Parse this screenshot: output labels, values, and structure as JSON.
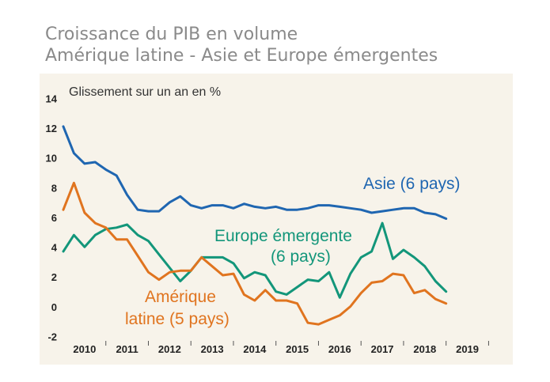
{
  "header": {
    "title_line1": "Croissance du PIB en volume",
    "title_line2": "Amérique latine - Asie et Europe émergentes"
  },
  "chart_data": {
    "type": "line",
    "ylabel": "Glissement sur un an en %",
    "ylim": [
      -2,
      14
    ],
    "yticks": [
      -2,
      0,
      2,
      4,
      6,
      8,
      10,
      12,
      14
    ],
    "xlim": [
      2009.75,
      2019.5
    ],
    "xticks": [
      {
        "label": "2010",
        "pos": 2010.25
      },
      {
        "label": "2011",
        "pos": 2011.25
      },
      {
        "label": "2012",
        "pos": 2012.25
      },
      {
        "label": "2013",
        "pos": 2013.25
      },
      {
        "label": "2014",
        "pos": 2014.25
      },
      {
        "label": "2015",
        "pos": 2015.25
      },
      {
        "label": "2016",
        "pos": 2016.25
      },
      {
        "label": "2017",
        "pos": 2017.25
      },
      {
        "label": "2018",
        "pos": 2018.25
      },
      {
        "label": "2019",
        "pos": 2019.25
      }
    ],
    "x": [
      2009.75,
      2010.0,
      2010.25,
      2010.5,
      2010.75,
      2011.0,
      2011.25,
      2011.5,
      2011.75,
      2012.0,
      2012.25,
      2012.5,
      2012.75,
      2013.0,
      2013.25,
      2013.5,
      2013.75,
      2014.0,
      2014.25,
      2014.5,
      2014.75,
      2015.0,
      2015.25,
      2015.5,
      2015.75,
      2016.0,
      2016.25,
      2016.5,
      2016.75,
      2017.0,
      2017.25,
      2017.5,
      2017.75,
      2018.0,
      2018.25,
      2018.5,
      2018.75
    ],
    "series": [
      {
        "name": "Asie (6 pays)",
        "color": "#1f66b1",
        "values": [
          12.2,
          10.4,
          9.7,
          9.8,
          9.3,
          8.9,
          7.6,
          6.6,
          6.5,
          6.5,
          7.1,
          7.5,
          6.9,
          6.7,
          6.9,
          6.9,
          6.7,
          7.0,
          6.8,
          6.7,
          6.8,
          6.6,
          6.6,
          6.7,
          6.9,
          6.9,
          6.8,
          6.7,
          6.6,
          6.4,
          6.5,
          6.6,
          6.7,
          6.7,
          6.4,
          6.3,
          6.0
        ]
      },
      {
        "name": "Europe émergente (6 pays)",
        "color": "#13967a",
        "values": [
          3.8,
          4.9,
          4.1,
          4.9,
          5.3,
          5.4,
          5.6,
          4.9,
          4.5,
          3.6,
          2.7,
          1.8,
          2.5,
          3.4,
          3.4,
          3.4,
          3.0,
          2.0,
          2.4,
          2.2,
          1.1,
          0.9,
          1.4,
          1.9,
          1.8,
          2.4,
          0.7,
          2.3,
          3.4,
          3.8,
          5.7,
          3.3,
          3.9,
          3.4,
          2.8,
          1.8,
          1.1
        ]
      },
      {
        "name": "Amérique latine (5 pays)",
        "color": "#e0741f",
        "values": [
          6.6,
          8.4,
          6.4,
          5.7,
          5.4,
          4.6,
          4.6,
          3.5,
          2.4,
          1.9,
          2.4,
          2.5,
          2.5,
          3.4,
          2.8,
          2.2,
          2.3,
          0.9,
          0.5,
          1.2,
          0.5,
          0.5,
          0.3,
          -1.0,
          -1.1,
          -0.8,
          -0.5,
          0.1,
          1.0,
          1.7,
          1.8,
          2.3,
          2.2,
          1.0,
          1.2,
          0.6,
          0.3
        ]
      }
    ],
    "annotations": {
      "asia": "Asie (6 pays)",
      "europe_line1": "Europe émergente",
      "europe_line2": "(6 pays)",
      "latam_line1": "Amérique",
      "latam_line2": "latine (5 pays)"
    }
  }
}
